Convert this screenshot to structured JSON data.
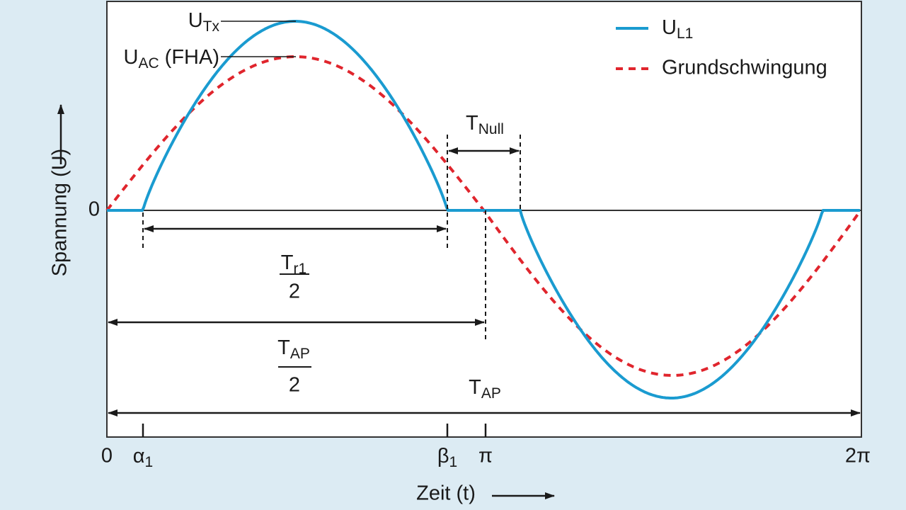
{
  "legend": {
    "items": [
      {
        "main": "U",
        "sub": "L1"
      },
      {
        "text": "Grundschwingung"
      }
    ]
  },
  "annotations": {
    "u_tx": {
      "main": "U",
      "sub": "Tx"
    },
    "u_ac": {
      "main": "U",
      "sub": "AC",
      "suffix": " (FHA)"
    },
    "t_null": {
      "main": "T",
      "sub": "Null"
    },
    "t_r1_half": {
      "main": "T",
      "sub": "r1",
      "denominator": "2"
    },
    "t_ap_half": {
      "main": "T",
      "sub": "AP",
      "denominator": "2"
    },
    "t_ap": {
      "main": "T",
      "sub": "AP"
    }
  },
  "x_axis": {
    "label": "Zeit (t)",
    "ticks": [
      {
        "main": "0"
      },
      {
        "main": "α",
        "sub": "1"
      },
      {
        "main": "β",
        "sub": "1"
      },
      {
        "main": "π"
      },
      {
        "main": "2π"
      }
    ]
  },
  "y_axis": {
    "label": "Spannung (U)",
    "zero": "0"
  }
}
